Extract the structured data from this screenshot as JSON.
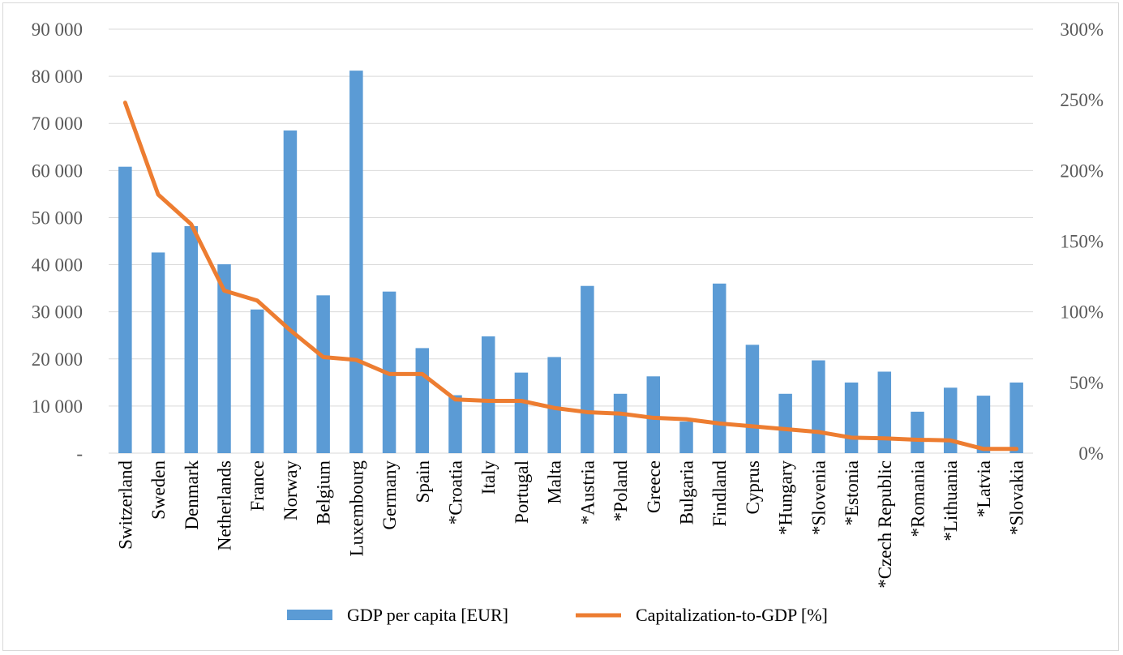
{
  "chart_data": {
    "type": "bar",
    "title": "",
    "categories": [
      "Switzerland",
      "Sweden",
      "Denmark",
      "Netherlands",
      "France",
      "Norway",
      "Belgium",
      "Luxembourg",
      "Germany",
      "Spain",
      "*Croatia",
      "Italy",
      "Portugal",
      "Malta",
      "*Austria",
      "*Poland",
      "Greece",
      "Bulgaria",
      "Findland",
      "Cyprus",
      "*Hungary",
      "*Slovenia",
      "*Estonia",
      "*Czech Republic",
      "*Romania",
      "*Lithuania",
      "*Latvia",
      "*Slovakia"
    ],
    "series": [
      {
        "name": "GDP per capita [EUR]",
        "type": "bar",
        "axis": "left",
        "color": "#5b9bd5",
        "values": [
          60800,
          42600,
          48200,
          40100,
          30500,
          68500,
          33500,
          81200,
          34300,
          22300,
          12300,
          24800,
          17100,
          20400,
          35500,
          12600,
          16300,
          6700,
          36000,
          23000,
          12600,
          19700,
          15000,
          17300,
          8800,
          13900,
          12200,
          15000
        ]
      },
      {
        "name": "Capitalization-to-GDP [%]",
        "type": "line",
        "axis": "right",
        "color": "#ed7d31",
        "values": [
          248,
          183,
          162,
          115,
          108,
          87,
          68,
          66,
          56,
          56,
          38,
          37,
          37,
          32,
          29,
          28,
          25,
          24,
          21,
          19,
          17,
          15,
          11,
          10.5,
          9.5,
          9,
          3,
          3
        ]
      }
    ],
    "y_left": {
      "min": 0,
      "max": 90000,
      "ticks": [
        0,
        10000,
        20000,
        30000,
        40000,
        50000,
        60000,
        70000,
        80000,
        90000
      ],
      "tick_labels": [
        "-",
        "10 000",
        "20 000",
        "30 000",
        "40 000",
        "50 000",
        "60 000",
        "70 000",
        "80 000",
        "90 000"
      ]
    },
    "y_right": {
      "min": 0,
      "max": 300,
      "ticks": [
        0,
        50,
        100,
        150,
        200,
        250,
        300
      ],
      "tick_labels": [
        "0%",
        "50%",
        "100%",
        "150%",
        "200%",
        "250%",
        "300%"
      ]
    },
    "grid": true,
    "legend_position": "bottom"
  }
}
